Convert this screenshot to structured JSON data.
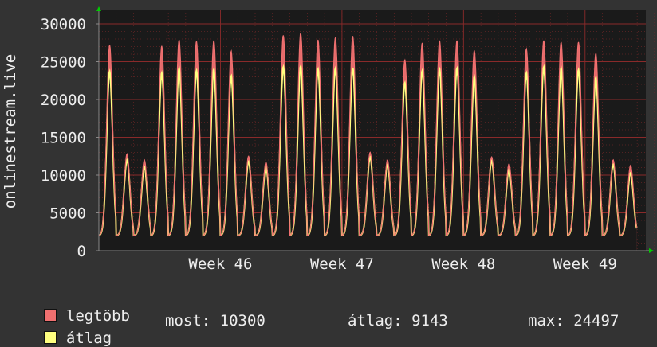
{
  "chart_data": {
    "type": "area",
    "ylabel": "onlinestream.live",
    "ylim": [
      0,
      30000
    ],
    "yticks": [
      0,
      5000,
      10000,
      15000,
      20000,
      25000,
      30000
    ],
    "xlim_weeks": [
      45,
      49.5
    ],
    "xticks": [
      {
        "label": "Week 46",
        "week": 46
      },
      {
        "label": "Week 47",
        "week": 47
      },
      {
        "label": "Week 48",
        "week": 48
      },
      {
        "label": "Week 49",
        "week": 49
      }
    ],
    "days_per_week": 7,
    "min_value": 2000,
    "series": [
      {
        "name": "legtöbb",
        "color": "#f07070",
        "daily_peaks": [
          27200,
          12800,
          12000,
          27100,
          27900,
          27700,
          27800,
          26400,
          12500,
          11700,
          28500,
          28800,
          27900,
          28200,
          28400,
          13000,
          12000,
          25200,
          27500,
          27800,
          27800,
          26500,
          12400,
          11500,
          26700,
          27800,
          27600,
          27600,
          26100,
          12000,
          11300
        ]
      },
      {
        "name": "átlag",
        "color": "#ffff80",
        "daily_peaks": [
          23700,
          12000,
          11100,
          23500,
          24100,
          23800,
          24000,
          23100,
          11800,
          11100,
          24300,
          24400,
          24000,
          24100,
          24200,
          12400,
          11400,
          22200,
          23800,
          24000,
          24100,
          23000,
          11900,
          10800,
          23500,
          24300,
          24100,
          23900,
          22900,
          11400,
          10300
        ]
      }
    ]
  },
  "legend": {
    "max_label": "legtöbb",
    "avg_label": "átlag"
  },
  "stats": {
    "current": "most: 10300",
    "average": "átlag: 9143",
    "maximum": "max: 24497"
  },
  "colors": {
    "background": "#333333",
    "plot_background": "#1a1a1a",
    "grid": "#8a2a2a",
    "axis": "#888888",
    "arrow": "#00cc00"
  }
}
